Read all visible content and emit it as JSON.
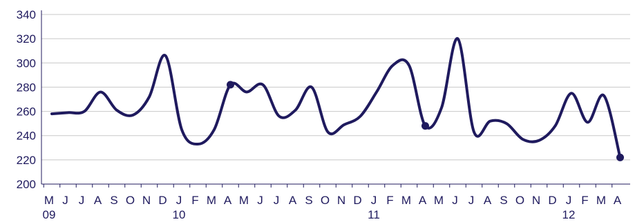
{
  "chart_data": {
    "type": "line",
    "title": "",
    "xlabel": "",
    "ylabel": "",
    "ylim": [
      200,
      340
    ],
    "yticks": [
      200,
      220,
      240,
      260,
      280,
      300,
      320,
      340
    ],
    "grid": "horizontal",
    "legend": "none",
    "x": [
      "M",
      "J",
      "J",
      "A",
      "S",
      "O",
      "N",
      "D",
      "J",
      "F",
      "M",
      "A",
      "M",
      "J",
      "J",
      "A",
      "S",
      "O",
      "N",
      "D",
      "J",
      "F",
      "M",
      "A",
      "M",
      "J",
      "J",
      "A",
      "S",
      "O",
      "N",
      "D",
      "J",
      "F",
      "M",
      "A"
    ],
    "year_labels": [
      {
        "index": 0,
        "label": "09"
      },
      {
        "index": 8,
        "label": "10"
      },
      {
        "index": 20,
        "label": "11"
      },
      {
        "index": 32,
        "label": "12"
      }
    ],
    "series": [
      {
        "values": [
          258,
          259,
          260,
          276,
          261,
          257,
          272,
          306,
          245,
          233,
          245,
          282,
          276,
          282,
          256,
          261,
          280,
          243,
          249,
          256,
          276,
          298,
          298,
          248,
          263,
          320,
          243,
          252,
          250,
          237,
          236,
          248,
          275,
          251,
          273,
          222
        ],
        "markers": [
          11,
          23,
          35
        ],
        "color": "#1f1a5e"
      }
    ]
  }
}
